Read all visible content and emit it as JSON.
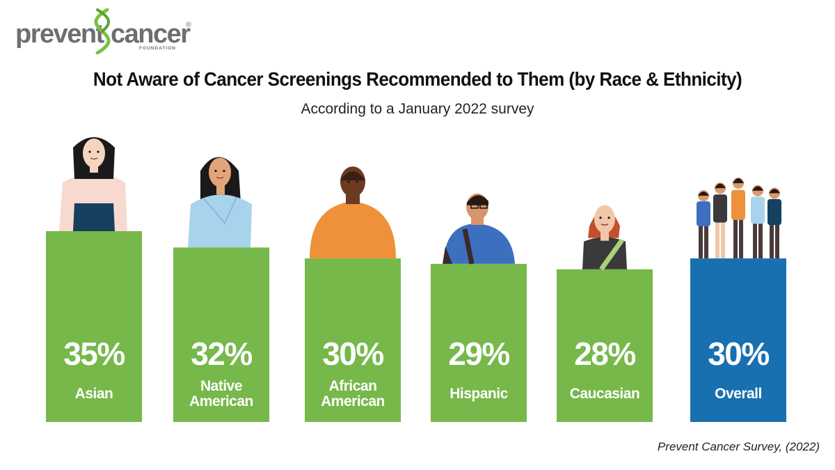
{
  "logo": {
    "left_word": "prevent",
    "right_word": "cancer",
    "sub": "FOUNDATION",
    "reg": "®"
  },
  "chart_data": {
    "type": "bar",
    "title": "Not Aware of Cancer Screenings Recommended to Them (by Race & Ethnicity)",
    "subtitle": "According to a January 2022 survey",
    "categories": [
      [
        "Asian"
      ],
      [
        "Native",
        "American"
      ],
      [
        "African",
        "American"
      ],
      [
        "Hispanic"
      ],
      [
        "Caucasian"
      ],
      [
        "Overall"
      ]
    ],
    "values": [
      35,
      32,
      30,
      29,
      28,
      30
    ],
    "value_labels": [
      "35%",
      "32%",
      "30%",
      "29%",
      "28%",
      "30%"
    ],
    "unit": "%",
    "colors": [
      "#76b84a",
      "#76b84a",
      "#76b84a",
      "#76b84a",
      "#76b84a",
      "#1970b0"
    ],
    "grid": false,
    "legend": "none"
  },
  "source": "Prevent Cancer Survey, (2022)",
  "figures": [
    {
      "name": "asian-woman-figure",
      "skin": "#f5d5c0",
      "hair": "#1a1a1a",
      "top": "#f7d9cf",
      "bottom": "#154060"
    },
    {
      "name": "native-american-woman-figure",
      "skin": "#e2a57a",
      "hair": "#1a1a1a",
      "top": "#a8d3ec"
    },
    {
      "name": "african-american-man-figure",
      "skin": "#6b3a22",
      "hair": "#3a1f12",
      "top": "#ee913a"
    },
    {
      "name": "hispanic-man-figure",
      "skin": "#d8946a",
      "hair": "#2a1a10",
      "top": "#3d6fbf",
      "strap": "#3a2a2a"
    },
    {
      "name": "caucasian-woman-figure",
      "skin": "#f2c6a8",
      "hair": "#c2502a",
      "top": "#3a3a3a",
      "strap": "#a8d27a"
    },
    {
      "name": "overall-group-figure",
      "skin": "#d99a70",
      "colors": [
        "#3d6fbf",
        "#3a3a3a",
        "#ee913a",
        "#a8d3ec",
        "#154060"
      ]
    }
  ]
}
